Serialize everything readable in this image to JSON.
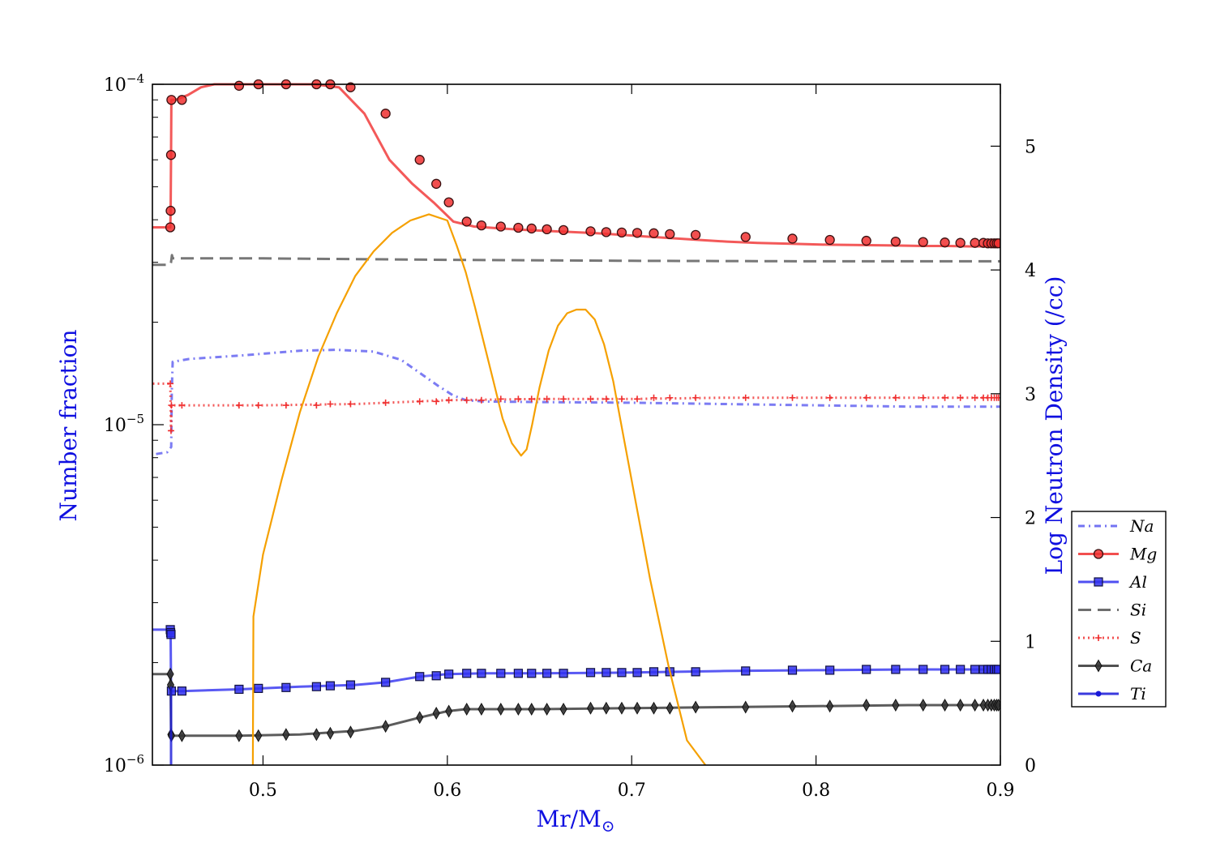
{
  "chart_data": {
    "type": "line",
    "xlabel_main": "Mr/M",
    "xlabel_sub": "⊙",
    "ylabel_left": "Number fraction",
    "ylabel_right": "Log Neutron Density (/cc)",
    "xlim": [
      0.44,
      0.9
    ],
    "ylim_left": [
      1e-06,
      0.0001
    ],
    "ylim_right": [
      0,
      5.5
    ],
    "yscale_left": "log",
    "legend_position": "lower-right outside",
    "x_ticks": [
      {
        "value": 0.5,
        "label": "0.5"
      },
      {
        "value": 0.6,
        "label": "0.6"
      },
      {
        "value": 0.7,
        "label": "0.7"
      },
      {
        "value": 0.8,
        "label": "0.8"
      },
      {
        "value": 0.9,
        "label": "0.9"
      }
    ],
    "y_left_ticks": [
      {
        "value": 1e-06,
        "base": "10",
        "exp": "−6"
      },
      {
        "value": 1e-05,
        "base": "10",
        "exp": "−5"
      },
      {
        "value": 0.0001,
        "base": "10",
        "exp": "−4"
      }
    ],
    "y_right_ticks": [
      {
        "value": 0,
        "label": "0"
      },
      {
        "value": 1,
        "label": "1"
      },
      {
        "value": 2,
        "label": "2"
      },
      {
        "value": 3,
        "label": "3"
      },
      {
        "value": 4,
        "label": "4"
      },
      {
        "value": 5,
        "label": "5"
      }
    ],
    "series": [
      {
        "name": "Na",
        "color": "#5b5bf0",
        "dash": "8,5,2,5",
        "marker": "none",
        "axis": "left",
        "x": [
          0.442,
          0.448,
          0.4502,
          0.4505,
          0.451,
          0.46,
          0.49,
          0.52,
          0.54,
          0.56,
          0.575,
          0.585,
          0.595,
          0.603,
          0.61,
          0.62,
          0.65,
          0.7,
          0.75,
          0.8,
          0.85,
          0.9
        ],
        "y": [
          8.2e-06,
          8.3e-06,
          8.6e-06,
          1.25e-05,
          1.53e-05,
          1.56e-05,
          1.6e-05,
          1.65e-05,
          1.66e-05,
          1.64e-05,
          1.55e-05,
          1.42e-05,
          1.3e-05,
          1.22e-05,
          1.18e-05,
          1.17e-05,
          1.165e-05,
          1.16e-05,
          1.15e-05,
          1.14e-05,
          1.13e-05,
          1.13e-05
        ]
      },
      {
        "name": "Mg",
        "color": "#f03030",
        "dash": "",
        "marker": "circle",
        "axis": "left",
        "x": [
          0.4402,
          0.4497,
          0.4499,
          0.4501,
          0.4503,
          0.4507,
          0.4527,
          0.4593,
          0.4664,
          0.4736,
          0.4815,
          0.4889,
          0.4966,
          0.5056,
          0.5161,
          0.5281,
          0.5412,
          0.555,
          0.5686,
          0.581,
          0.5925,
          0.6033,
          0.6145,
          0.6266,
          0.6397,
          0.6533,
          0.667,
          0.681,
          0.6946,
          0.708,
          0.7218,
          0.7363,
          0.7516,
          0.7684,
          0.7866,
          0.8057,
          0.8248,
          0.8426,
          0.8583,
          0.8718,
          0.883,
          0.8891,
          0.8946,
          0.899
        ],
        "y": [
          3.8e-05,
          3.8e-05,
          4.25e-05,
          6.2e-05,
          9e-05,
          9e-05,
          9e-05,
          9.3e-05,
          9.8e-05,
          0.0001,
          0.0001,
          0.0001,
          0.0001,
          0.0001,
          0.0001,
          0.0001,
          9.8e-05,
          8.2e-05,
          6e-05,
          5.1e-05,
          4.5e-05,
          3.95e-05,
          3.82e-05,
          3.78e-05,
          3.74e-05,
          3.71e-05,
          3.68e-05,
          3.65e-05,
          3.61e-05,
          3.57e-05,
          3.53e-05,
          3.49e-05,
          3.45e-05,
          3.42e-05,
          3.4e-05,
          3.38e-05,
          3.37e-05,
          3.36e-05,
          3.35e-05,
          3.35e-05,
          3.34e-05,
          3.34e-05,
          3.34e-05,
          3.34e-05
        ],
        "markers_x": [
          0.4497,
          0.4499,
          0.4501,
          0.4503,
          0.456,
          0.487,
          0.4975,
          0.5125,
          0.529,
          0.5365,
          0.5475,
          0.5665,
          0.585,
          0.594,
          0.6008,
          0.6105,
          0.6185,
          0.629,
          0.6385,
          0.6457,
          0.654,
          0.663,
          0.6777,
          0.6862,
          0.6946,
          0.703,
          0.712,
          0.7207,
          0.7347,
          0.7618,
          0.7872,
          0.8075,
          0.8273,
          0.8432,
          0.8581,
          0.8699,
          0.8783,
          0.8862,
          0.8908,
          0.8932,
          0.8951,
          0.8967,
          0.898,
          0.899
        ],
        "markers_y": [
          3.8e-05,
          4.25e-05,
          6.2e-05,
          9e-05,
          9e-05,
          9.9e-05,
          0.0001,
          0.0001,
          0.0001,
          0.0001,
          9.8e-05,
          8.2e-05,
          6e-05,
          5.1e-05,
          4.5e-05,
          3.95e-05,
          3.85e-05,
          3.82e-05,
          3.79e-05,
          3.77e-05,
          3.75e-05,
          3.73e-05,
          3.7e-05,
          3.68e-05,
          3.67e-05,
          3.66e-05,
          3.65e-05,
          3.63e-05,
          3.61e-05,
          3.56e-05,
          3.52e-05,
          3.49e-05,
          3.47e-05,
          3.45e-05,
          3.44e-05,
          3.43e-05,
          3.42e-05,
          3.42e-05,
          3.42e-05,
          3.41e-05,
          3.41e-05,
          3.41e-05,
          3.41e-05,
          3.41e-05
        ]
      },
      {
        "name": "Al",
        "color": "#3030f0",
        "dash": "",
        "marker": "square",
        "axis": "left",
        "x": [
          0.4402,
          0.4497,
          0.4499,
          0.4501,
          0.4503,
          0.456,
          0.487,
          0.52,
          0.55,
          0.5665,
          0.585,
          0.6,
          0.62,
          0.65,
          0.7,
          0.75,
          0.8,
          0.85,
          0.899
        ],
        "y": [
          2.5e-06,
          2.5e-06,
          2.42e-06,
          1.65e-06,
          1.65e-06,
          1.65e-06,
          1.67e-06,
          1.7e-06,
          1.72e-06,
          1.75e-06,
          1.82e-06,
          1.85e-06,
          1.86e-06,
          1.86e-06,
          1.87e-06,
          1.89e-06,
          1.9e-06,
          1.91e-06,
          1.91e-06
        ],
        "markers_x": [
          0.4497,
          0.4499,
          0.4501,
          0.4503,
          0.456,
          0.487,
          0.4975,
          0.5125,
          0.529,
          0.5365,
          0.5475,
          0.5665,
          0.585,
          0.594,
          0.6008,
          0.6105,
          0.6185,
          0.629,
          0.6385,
          0.6457,
          0.654,
          0.663,
          0.6777,
          0.6862,
          0.6946,
          0.703,
          0.712,
          0.7207,
          0.7347,
          0.7618,
          0.7872,
          0.8075,
          0.8273,
          0.8432,
          0.8581,
          0.8699,
          0.8783,
          0.8862,
          0.8908,
          0.8932,
          0.8951,
          0.8967,
          0.898,
          0.899
        ],
        "markers_y": [
          2.5e-06,
          2.45e-06,
          2.42e-06,
          1.65e-06,
          1.65e-06,
          1.67e-06,
          1.68e-06,
          1.69e-06,
          1.7e-06,
          1.71e-06,
          1.72e-06,
          1.75e-06,
          1.82e-06,
          1.83e-06,
          1.85e-06,
          1.86e-06,
          1.86e-06,
          1.86e-06,
          1.86e-06,
          1.86e-06,
          1.86e-06,
          1.86e-06,
          1.87e-06,
          1.87e-06,
          1.87e-06,
          1.87e-06,
          1.88e-06,
          1.88e-06,
          1.88e-06,
          1.89e-06,
          1.9e-06,
          1.9e-06,
          1.91e-06,
          1.91e-06,
          1.91e-06,
          1.91e-06,
          1.91e-06,
          1.91e-06,
          1.91e-06,
          1.91e-06,
          1.91e-06,
          1.91e-06,
          1.91e-06,
          1.91e-06
        ]
      },
      {
        "name": "Si",
        "color": "#555555",
        "dash": "16,8",
        "marker": "none",
        "axis": "left",
        "x": [
          0.4402,
          0.4497,
          0.4501,
          0.4506,
          0.451,
          0.5,
          0.6,
          0.7,
          0.8,
          0.9
        ],
        "y": [
          2.95e-05,
          2.95e-05,
          3e-05,
          3.15e-05,
          3.08e-05,
          3.08e-05,
          3.05e-05,
          3.03e-05,
          3.02e-05,
          3.02e-05
        ]
      },
      {
        "name": "S",
        "color": "#f03030",
        "dash": "2,4",
        "marker": "plus",
        "axis": "left",
        "x": [
          0.4402,
          0.4497,
          0.4501,
          0.4503,
          0.456,
          0.5,
          0.55,
          0.6,
          0.65,
          0.7,
          0.75,
          0.8,
          0.85,
          0.9
        ],
        "y": [
          1.32e-05,
          1.32e-05,
          9.6e-06,
          1.14e-05,
          1.14e-05,
          1.14e-05,
          1.15e-05,
          1.18e-05,
          1.19e-05,
          1.19e-05,
          1.2e-05,
          1.2e-05,
          1.2e-05,
          1.2e-05
        ],
        "markers_x": [
          0.4497,
          0.4501,
          0.4503,
          0.456,
          0.487,
          0.4975,
          0.5125,
          0.529,
          0.5365,
          0.5475,
          0.5665,
          0.585,
          0.594,
          0.6008,
          0.6105,
          0.6185,
          0.629,
          0.6385,
          0.6457,
          0.654,
          0.663,
          0.6777,
          0.6862,
          0.6946,
          0.703,
          0.712,
          0.7207,
          0.7347,
          0.7618,
          0.7872,
          0.8075,
          0.8273,
          0.8432,
          0.8581,
          0.8699,
          0.8783,
          0.8862,
          0.8908,
          0.8932,
          0.8951,
          0.8967,
          0.898,
          0.899
        ],
        "markers_y": [
          1.32e-05,
          9.6e-06,
          1.14e-05,
          1.14e-05,
          1.14e-05,
          1.14e-05,
          1.14e-05,
          1.14e-05,
          1.15e-05,
          1.15e-05,
          1.16e-05,
          1.17e-05,
          1.17e-05,
          1.18e-05,
          1.18e-05,
          1.18e-05,
          1.19e-05,
          1.19e-05,
          1.19e-05,
          1.19e-05,
          1.19e-05,
          1.19e-05,
          1.19e-05,
          1.19e-05,
          1.19e-05,
          1.2e-05,
          1.2e-05,
          1.2e-05,
          1.2e-05,
          1.2e-05,
          1.2e-05,
          1.2e-05,
          1.2e-05,
          1.2e-05,
          1.2e-05,
          1.2e-05,
          1.2e-05,
          1.2e-05,
          1.2e-05,
          1.2e-05,
          1.2e-05,
          1.2e-05,
          1.2e-05
        ]
      },
      {
        "name": "Ca",
        "color": "#333333",
        "dash": "",
        "marker": "diamond",
        "axis": "left",
        "x": [
          0.4402,
          0.4497,
          0.4499,
          0.4501,
          0.4503,
          0.456,
          0.487,
          0.52,
          0.55,
          0.5665,
          0.585,
          0.6,
          0.61,
          0.65,
          0.7,
          0.75,
          0.8,
          0.85,
          0.899
        ],
        "y": [
          1.85e-06,
          1.85e-06,
          1.7e-06,
          1.23e-06,
          1.22e-06,
          1.22e-06,
          1.22e-06,
          1.23e-06,
          1.26e-06,
          1.3e-06,
          1.38e-06,
          1.44e-06,
          1.46e-06,
          1.46e-06,
          1.47e-06,
          1.48e-06,
          1.49e-06,
          1.5e-06,
          1.5e-06
        ],
        "markers_x": [
          0.4497,
          0.4499,
          0.4501,
          0.4503,
          0.456,
          0.487,
          0.4975,
          0.5125,
          0.529,
          0.5365,
          0.5475,
          0.5665,
          0.585,
          0.594,
          0.6008,
          0.6105,
          0.6185,
          0.629,
          0.6385,
          0.6457,
          0.654,
          0.663,
          0.6777,
          0.6862,
          0.6946,
          0.703,
          0.712,
          0.7207,
          0.7347,
          0.7618,
          0.7872,
          0.8075,
          0.8273,
          0.8432,
          0.8581,
          0.8699,
          0.8783,
          0.8862,
          0.8908,
          0.8932,
          0.8951,
          0.8967,
          0.898,
          0.899
        ],
        "markers_y": [
          1.85e-06,
          1.72e-06,
          1.23e-06,
          1.22e-06,
          1.22e-06,
          1.22e-06,
          1.22e-06,
          1.23e-06,
          1.23e-06,
          1.24e-06,
          1.25e-06,
          1.3e-06,
          1.38e-06,
          1.42e-06,
          1.44e-06,
          1.46e-06,
          1.46e-06,
          1.46e-06,
          1.46e-06,
          1.46e-06,
          1.46e-06,
          1.46e-06,
          1.47e-06,
          1.47e-06,
          1.47e-06,
          1.47e-06,
          1.47e-06,
          1.47e-06,
          1.48e-06,
          1.48e-06,
          1.49e-06,
          1.49e-06,
          1.5e-06,
          1.5e-06,
          1.5e-06,
          1.5e-06,
          1.5e-06,
          1.5e-06,
          1.5e-06,
          1.5e-06,
          1.5e-06,
          1.5e-06,
          1.5e-06,
          1.5e-06
        ]
      },
      {
        "name": "Ti",
        "color": "#1818d8",
        "dash": "",
        "marker": "dot",
        "axis": "left",
        "x": [
          0.4501,
          0.4501
        ],
        "y": [
          1e-06,
          1.7e-06
        ],
        "markers_x": [],
        "markers_y": []
      }
    ],
    "neutron_density": {
      "color": "#f5a000",
      "axis": "right",
      "x": [
        0.4945,
        0.4948,
        0.5,
        0.51,
        0.52,
        0.53,
        0.54,
        0.55,
        0.56,
        0.57,
        0.58,
        0.59,
        0.6,
        0.605,
        0.608,
        0.61,
        0.615,
        0.62,
        0.625,
        0.63,
        0.635,
        0.64,
        0.643,
        0.646,
        0.65,
        0.655,
        0.66,
        0.665,
        0.67,
        0.675,
        0.68,
        0.685,
        0.69,
        0.695,
        0.7,
        0.71,
        0.72,
        0.73,
        0.74
      ],
      "y": [
        0,
        1.2,
        1.7,
        2.3,
        2.85,
        3.3,
        3.65,
        3.95,
        4.15,
        4.3,
        4.4,
        4.45,
        4.4,
        4.2,
        4.07,
        3.98,
        3.7,
        3.4,
        3.1,
        2.8,
        2.6,
        2.5,
        2.55,
        2.75,
        3.05,
        3.35,
        3.55,
        3.65,
        3.68,
        3.68,
        3.6,
        3.4,
        3.1,
        2.7,
        2.3,
        1.5,
        0.8,
        0.2,
        0
      ]
    }
  },
  "legend": {
    "items": [
      {
        "label": "Na",
        "color": "#5b5bf0",
        "dash": "8,5,2,5",
        "marker": "none"
      },
      {
        "label": "Mg",
        "color": "#f03030",
        "dash": "",
        "marker": "circle"
      },
      {
        "label": "Al",
        "color": "#3030f0",
        "dash": "",
        "marker": "square"
      },
      {
        "label": "Si",
        "color": "#555555",
        "dash": "16,8",
        "marker": "none"
      },
      {
        "label": "S",
        "color": "#f03030",
        "dash": "2,4",
        "marker": "plus"
      },
      {
        "label": "Ca",
        "color": "#333333",
        "dash": "",
        "marker": "diamond"
      },
      {
        "label": "Ti",
        "color": "#1818d8",
        "dash": "",
        "marker": "dot"
      }
    ]
  }
}
